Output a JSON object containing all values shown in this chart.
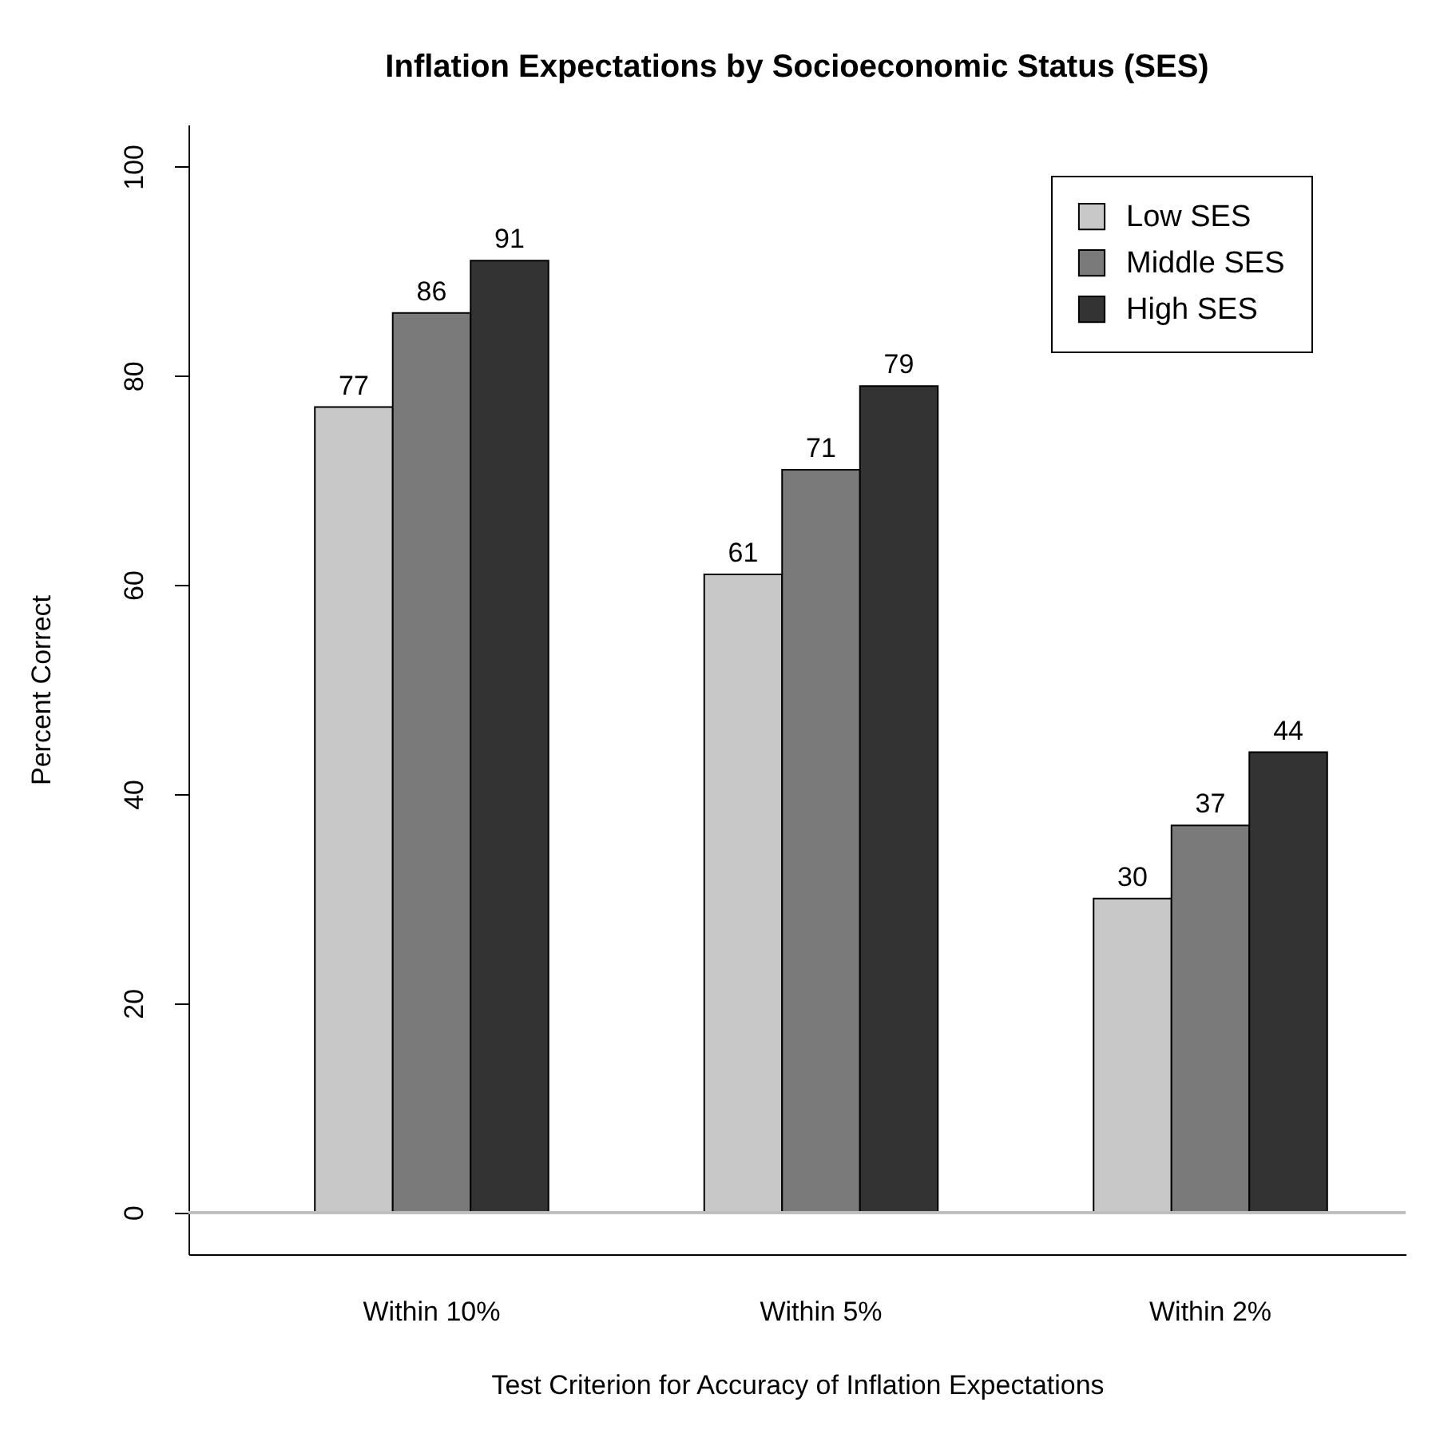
{
  "chart_data": {
    "type": "bar",
    "title": "Inflation Expectations by Socioeconomic Status (SES)",
    "xlabel": "Test Criterion for Accuracy of Inflation Expectations",
    "ylabel": "Percent Correct",
    "categories": [
      "Within 10%",
      "Within 5%",
      "Within 2%"
    ],
    "series": [
      {
        "name": "Low SES",
        "color": "#c8c8c8",
        "values": [
          77,
          61,
          30
        ]
      },
      {
        "name": "Middle SES",
        "color": "#7a7a7a",
        "values": [
          86,
          71,
          37
        ]
      },
      {
        "name": "High SES",
        "color": "#333333",
        "values": [
          91,
          79,
          44
        ]
      }
    ],
    "data_labels": true,
    "ylim": [
      -4,
      104
    ],
    "yticks": [
      0,
      20,
      40,
      60,
      80,
      100
    ],
    "grid": false,
    "legend": "top right",
    "ref_lines": [
      {
        "axis": "y",
        "value": 0,
        "color": "#bebebe"
      }
    ]
  }
}
